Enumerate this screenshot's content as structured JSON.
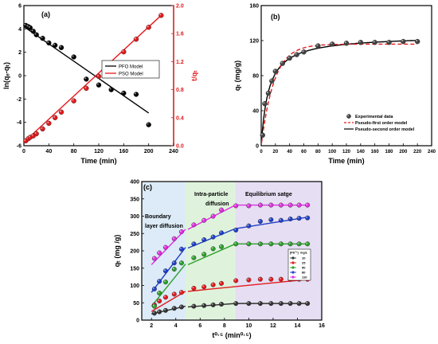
{
  "chart_data": [
    {
      "panel_label": "(a)",
      "type": "scatter",
      "xlabel": "Time (min)",
      "ylabel_left": "ln(qₑ-qₜ)",
      "ylabel_right": "t/qₜ",
      "xlim": [
        0,
        240
      ],
      "ylim_left": [
        -6,
        6
      ],
      "ylim_right": [
        0.0,
        2.0
      ],
      "xticks": [
        0,
        40,
        80,
        120,
        160,
        200,
        240
      ],
      "yticks_left": [
        -6,
        -4,
        -2,
        0,
        2,
        4,
        6
      ],
      "yticks_right": [
        0.0,
        0.4,
        0.8,
        1.2,
        1.6,
        2.0
      ],
      "legend": [
        "PFO Model",
        "PSO Model"
      ],
      "series": [
        {
          "name": "PFO Model",
          "axis": "left",
          "color": "#000000",
          "x": [
            3,
            7,
            10,
            15,
            20,
            30,
            40,
            50,
            60,
            80,
            100,
            120,
            140,
            160,
            180,
            200
          ],
          "y": [
            4.3,
            4.2,
            4.1,
            3.8,
            3.5,
            3.2,
            2.8,
            2.6,
            2.4,
            1.6,
            -0.3,
            -0.8,
            -1.2,
            -1.5,
            -1.6,
            -4.2
          ],
          "fit": [
            [
              0,
              4.2
            ],
            [
              200,
              -3.2
            ]
          ]
        },
        {
          "name": "PSO Model",
          "axis": "right",
          "color": "#e41a1c",
          "x": [
            3,
            7,
            10,
            15,
            20,
            30,
            40,
            50,
            60,
            80,
            100,
            120,
            140,
            160,
            180,
            200,
            220
          ],
          "y": [
            0.07,
            0.1,
            0.12,
            0.14,
            0.17,
            0.24,
            0.32,
            0.4,
            0.48,
            0.64,
            0.82,
            0.99,
            1.16,
            1.34,
            1.52,
            1.69,
            1.86
          ],
          "fit": [
            [
              0,
              0.05
            ],
            [
              220,
              1.86
            ]
          ]
        }
      ]
    },
    {
      "panel_label": "(b)",
      "type": "scatter",
      "xlabel": "Time (min)",
      "ylabel": "qₜ (mg/g)",
      "xlim": [
        0,
        240
      ],
      "ylim": [
        0,
        160
      ],
      "xticks": [
        0,
        20,
        40,
        60,
        80,
        100,
        120,
        140,
        160,
        180,
        200,
        220,
        240
      ],
      "yticks": [
        0,
        40,
        80,
        120,
        160
      ],
      "legend": [
        "Experimental data",
        "Pseudo-first order model",
        "Pseudo-second order model"
      ],
      "series": [
        {
          "name": "Experimental data",
          "x": [
            2,
            5,
            10,
            15,
            20,
            30,
            40,
            50,
            60,
            80,
            100,
            120,
            140,
            160,
            180,
            200,
            220
          ],
          "y": [
            12,
            48,
            60,
            74,
            85,
            94,
            100,
            104,
            107,
            114,
            116,
            117,
            118,
            118,
            118,
            119,
            119
          ]
        },
        {
          "name": "Pseudo-first order model",
          "model": "pfo",
          "qe": 116,
          "k": 0.055,
          "color": "#e41a1c"
        },
        {
          "name": "Pseudo-second order model",
          "model": "pso",
          "qe": 126,
          "k": 0.00075,
          "color": "#000000"
        }
      ]
    },
    {
      "panel_label": "(c)",
      "type": "scatter",
      "xlabel": "t⁰·⁵ (min⁰·⁵)",
      "ylabel": "qₜ (mg /g)",
      "xlim": [
        1.2,
        16
      ],
      "ylim": [
        0,
        400
      ],
      "xticks": [
        2,
        4,
        6,
        8,
        10,
        12,
        14,
        16
      ],
      "yticks": [
        0,
        50,
        100,
        150,
        200,
        250,
        300,
        350,
        400
      ],
      "region_labels": [
        "Boundary layer diffusion",
        "Intra-particle diffusion",
        "Equilibrium satge"
      ],
      "region_bounds": [
        1.2,
        4.8,
        8.9,
        16
      ],
      "region_colors": [
        "#dcebf7",
        "#dff3dc",
        "#e6def3"
      ],
      "legend_title_conc": "[Pb²⁺]",
      "legend_title_unit": "mg/L",
      "legend": [
        "10",
        "25",
        "50",
        "80",
        "110"
      ],
      "x": [
        2.24,
        2.65,
        3.16,
        3.87,
        4.47,
        5.48,
        6.32,
        7.07,
        7.75,
        8.94,
        10.0,
        10.95,
        11.83,
        12.65,
        13.42,
        14.14,
        14.83
      ],
      "series": [
        {
          "name": "10",
          "color": "#333333",
          "y": [
            20,
            24,
            28,
            34,
            38,
            40,
            42,
            44,
            46,
            48,
            48,
            48,
            48,
            48,
            48,
            48,
            48
          ],
          "fits": [
            [
              [
                2.0,
                18
              ],
              [
                4.8,
                40
              ]
            ],
            [
              [
                5.0,
                38
              ],
              [
                8.9,
                48
              ]
            ],
            [
              [
                9.1,
                48
              ],
              [
                15.0,
                48
              ]
            ]
          ]
        },
        {
          "name": "25",
          "color": "#e41a1c",
          "y": [
            44,
            55,
            66,
            75,
            80,
            92,
            96,
            102,
            106,
            114,
            116,
            118,
            118,
            118,
            118,
            118,
            118
          ],
          "fits": [
            [
              [
                2.0,
                25
              ],
              [
                4.8,
                83
              ]
            ],
            [
              [
                5.0,
                83
              ],
              [
                15.0,
                118
              ]
            ]
          ]
        },
        {
          "name": "50",
          "color": "#2ca02c",
          "y": [
            40,
            78,
            110,
            147,
            165,
            180,
            190,
            206,
            212,
            220,
            220,
            220,
            220,
            220,
            220,
            220,
            220
          ],
          "fits": [
            [
              [
                2.0,
                40
              ],
              [
                4.8,
                162
              ]
            ],
            [
              [
                5.0,
                160
              ],
              [
                8.9,
                220
              ]
            ],
            [
              [
                9.1,
                220
              ],
              [
                15.0,
                220
              ]
            ]
          ]
        },
        {
          "name": "80",
          "color": "#1f3fc8",
          "y": [
            90,
            112,
            142,
            165,
            205,
            220,
            232,
            240,
            252,
            260,
            272,
            285,
            290,
            288,
            292,
            294,
            295
          ],
          "fits": [
            [
              [
                2.0,
                80
              ],
              [
                4.8,
                210
              ]
            ],
            [
              [
                5.0,
                208
              ],
              [
                8.9,
                264
              ]
            ],
            [
              [
                8.9,
                264
              ],
              [
                15.0,
                298
              ]
            ]
          ]
        },
        {
          "name": "110",
          "color": "#e030e0",
          "y": [
            178,
            194,
            210,
            235,
            255,
            275,
            288,
            300,
            318,
            330,
            330,
            332,
            332,
            332,
            332,
            332,
            332
          ],
          "fits": [
            [
              [
                2.0,
                160
              ],
              [
                4.8,
                262
              ]
            ],
            [
              [
                5.0,
                262
              ],
              [
                8.9,
                332
              ]
            ],
            [
              [
                9.1,
                332
              ],
              [
                15.0,
                332
              ]
            ]
          ]
        }
      ]
    }
  ]
}
